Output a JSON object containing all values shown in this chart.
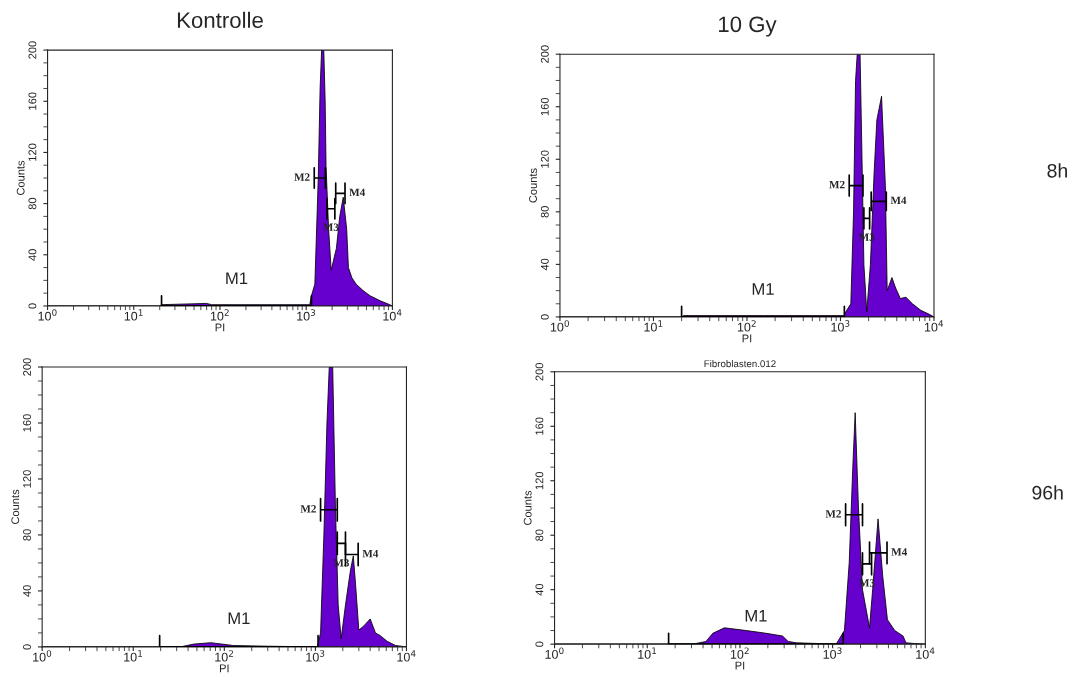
{
  "chart_data": [
    {
      "type": "area",
      "title": "Kontrolle",
      "xlabel": "PI",
      "ylabel": "Counts",
      "log": "x",
      "xlim": [
        1,
        10000
      ],
      "ylim": [
        0,
        200
      ],
      "xticks": [
        {
          "value": 1,
          "label": "10$^{0}$"
        },
        {
          "value": 10,
          "label": "10$^{1}$"
        },
        {
          "value": 100,
          "label": "10$^{2}$"
        },
        {
          "value": 1000,
          "label": "10$^{3}$"
        },
        {
          "value": 10000,
          "label": "10$^{4}$"
        }
      ],
      "yticks": [
        0,
        40,
        80,
        120,
        160,
        200
      ],
      "series": [
        {
          "color": "#6600cc",
          "x": [
            1,
            20,
            21,
            70,
            80,
            1100,
            1150,
            1260,
            1380,
            1450,
            1510,
            1600,
            1660,
            1700,
            1820,
            1950,
            2240,
            2450,
            2690,
            2950,
            3090,
            3390,
            3800,
            4570,
            5500,
            7240,
            9330,
            10000
          ],
          "values": [
            0,
            0,
            1,
            2,
            1,
            1,
            8,
            17,
            100,
            170,
            200,
            200,
            160,
            109,
            60,
            28,
            45,
            70,
            85,
            60,
            30,
            22,
            17,
            12,
            8,
            4,
            1,
            0
          ]
        },
        {
          "type": "line",
          "name": "M1",
          "color": "#000000",
          "x": [
            21,
            21,
            21,
            1150,
            1150,
            1150
          ],
          "values": [
            8,
            0,
            0,
            0,
            8,
            0
          ]
        },
        {
          "type": "line",
          "name": "M2",
          "color": "#000000",
          "x": [
            1240,
            1240,
            1240,
            1670,
            1670,
            1670
          ],
          "values": [
            108,
            92,
            100,
            100,
            108,
            92
          ]
        },
        {
          "type": "line",
          "name": "M3",
          "color": "#000000",
          "x": [
            1740,
            1740,
            1740,
            2150,
            2150,
            2150
          ],
          "values": [
            84,
            68,
            76,
            76,
            84,
            68
          ]
        },
        {
          "type": "line",
          "name": "M4",
          "color": "#000000",
          "x": [
            2200,
            2200,
            2200,
            2820,
            2820,
            2820
          ],
          "values": [
            96,
            80,
            88,
            88,
            96,
            80
          ]
        }
      ]
    },
    {
      "type": "area",
      "title": "10 Gy",
      "xlabel": "PI",
      "ylabel": "Counts",
      "log": "x",
      "xlim": [
        1,
        10000
      ],
      "ylim": [
        0,
        200
      ],
      "xticks": [
        {
          "value": 1,
          "label": "10$^{0}$"
        },
        {
          "value": 10,
          "label": "10$^{1}$"
        },
        {
          "value": 100,
          "label": "10$^{2}$"
        },
        {
          "value": 1000,
          "label": "10$^{3}$"
        },
        {
          "value": 10000,
          "label": "10$^{4}$"
        }
      ],
      "yticks": [
        0,
        40,
        80,
        120,
        160,
        200
      ],
      "series": [
        {
          "color": "#6600cc",
          "x": [
            1,
            20,
            21,
            150,
            1100,
            1120,
            1290,
            1380,
            1450,
            1510,
            1620,
            1700,
            1780,
            1910,
            2090,
            2290,
            2450,
            2750,
            3020,
            3160,
            3550,
            3890,
            4370,
            5010,
            5890,
            7240,
            8910,
            10000
          ],
          "values": [
            0,
            0,
            1,
            1,
            1,
            3,
            10,
            80,
            180,
            200,
            200,
            120,
            40,
            4,
            40,
            110,
            150,
            168,
            100,
            20,
            30,
            22,
            14,
            15,
            10,
            5,
            2,
            0
          ]
        },
        {
          "type": "line",
          "name": "M1",
          "color": "#000000",
          "x": [
            20,
            20,
            20,
            1100,
            1100,
            1100
          ],
          "values": [
            8,
            0,
            0,
            0,
            8,
            0
          ]
        },
        {
          "type": "line",
          "name": "M2",
          "color": "#000000",
          "x": [
            1240,
            1240,
            1240,
            1740,
            1740,
            1740
          ],
          "values": [
            108,
            92,
            100,
            100,
            108,
            92
          ]
        },
        {
          "type": "line",
          "name": "M3",
          "color": "#000000",
          "x": [
            1780,
            1780,
            1780,
            2050,
            2050,
            2050
          ],
          "values": [
            83,
            67,
            75,
            75,
            83,
            67
          ]
        },
        {
          "type": "line",
          "name": "M4",
          "color": "#000000",
          "x": [
            2130,
            2130,
            2130,
            3090,
            3090,
            3090
          ],
          "values": [
            95,
            81,
            88,
            88,
            95,
            81
          ]
        }
      ],
      "annotations": [
        "8h"
      ]
    },
    {
      "type": "area",
      "xlabel": "PI",
      "ylabel": "Counts",
      "log": "x",
      "xlim": [
        1,
        10000
      ],
      "ylim": [
        0,
        200
      ],
      "xticks": [
        {
          "value": 1,
          "label": "10$^{0}$"
        },
        {
          "value": 10,
          "label": "10$^{1}$"
        },
        {
          "value": 100,
          "label": "10$^{2}$"
        },
        {
          "value": 1000,
          "label": "10$^{3}$"
        },
        {
          "value": 10000,
          "label": "10$^{4}$"
        }
      ],
      "yticks": [
        0,
        40,
        80,
        120,
        160,
        200
      ],
      "series": [
        {
          "color": "#6600cc",
          "x": [
            1,
            33,
            46,
            71,
            126,
            295,
            1050,
            1140,
            1240,
            1340,
            1420,
            1550,
            1660,
            1780,
            1920,
            2140,
            2430,
            2610,
            2760,
            3000,
            3400,
            4000,
            4570,
            5170,
            6130,
            7590,
            10000
          ],
          "values": [
            0,
            0,
            2,
            3,
            1,
            0.5,
            0,
            10,
            80,
            160,
            200,
            200,
            100,
            30,
            6,
            30,
            55,
            65,
            45,
            12,
            15,
            20,
            10,
            8,
            4,
            1,
            0
          ]
        },
        {
          "type": "line",
          "name": "M1",
          "color": "#000000",
          "x": [
            19.5,
            19.5,
            19.5,
            1070,
            1070,
            1070
          ],
          "values": [
            8,
            0,
            0,
            0,
            8,
            0
          ]
        },
        {
          "type": "line",
          "name": "M2",
          "color": "#000000",
          "x": [
            1140,
            1140,
            1140,
            1740,
            1740,
            1740
          ],
          "values": [
            106,
            90,
            98,
            98,
            106,
            90
          ]
        },
        {
          "type": "line",
          "name": "M3",
          "color": "#000000",
          "x": [
            1740,
            1740,
            1740,
            2140,
            2140,
            2140
          ],
          "values": [
            82,
            66,
            74,
            74,
            82,
            66
          ]
        },
        {
          "type": "line",
          "name": "M4",
          "color": "#000000",
          "x": [
            2140,
            2140,
            2140,
            2950,
            2950,
            2950
          ],
          "values": [
            74,
            58,
            66,
            66,
            74,
            58
          ]
        }
      ]
    },
    {
      "type": "area",
      "subtitle": "Fibroblasten.012",
      "xlabel": "PI",
      "ylabel": "Counts",
      "log": "x",
      "xlim": [
        1,
        10000
      ],
      "ylim": [
        0,
        200
      ],
      "xticks": [
        {
          "value": 1,
          "label": "10$^{0}$"
        },
        {
          "value": 10,
          "label": "10$^{1}$"
        },
        {
          "value": 100,
          "label": "10$^{2}$"
        },
        {
          "value": 1000,
          "label": "10$^{3}$"
        },
        {
          "value": 10000,
          "label": "10$^{4}$"
        }
      ],
      "yticks": [
        0,
        40,
        80,
        120,
        160,
        200
      ],
      "series": [
        {
          "color": "#6600cc",
          "x": [
            1,
            31,
            43,
            51,
            68,
            117,
            191,
            288,
            331,
            405,
            1090,
            1340,
            1510,
            1650,
            1750,
            1900,
            2100,
            2500,
            2700,
            3090,
            3470,
            3900,
            4680,
            5750,
            6170,
            7590,
            10000
          ],
          "values": [
            0,
            0,
            2,
            8,
            12,
            10,
            8,
            6,
            2,
            1,
            0,
            10,
            60,
            130,
            170,
            100,
            40,
            12,
            40,
            92,
            50,
            18,
            10,
            6,
            1,
            0.5,
            0
          ]
        },
        {
          "type": "line",
          "name": "M1",
          "color": "#000000",
          "x": [
            17,
            17,
            17,
            1300,
            1300,
            1300
          ],
          "values": [
            8,
            0,
            0,
            0,
            8,
            0
          ]
        },
        {
          "type": "line",
          "name": "M2",
          "color": "#000000",
          "x": [
            1380,
            1380,
            1380,
            2100,
            2100,
            2100
          ],
          "values": [
            103,
            87,
            95,
            95,
            103,
            87
          ]
        },
        {
          "type": "line",
          "name": "M3",
          "color": "#000000",
          "x": [
            2100,
            2100,
            2100,
            2630,
            2630,
            2630
          ],
          "values": [
            67,
            51,
            59,
            59,
            67,
            51
          ]
        },
        {
          "type": "line",
          "name": "M4",
          "color": "#000000",
          "x": [
            2500,
            2500,
            2500,
            3860,
            3860,
            3860
          ],
          "values": [
            75,
            59,
            67,
            67,
            75,
            59
          ]
        }
      ],
      "annotations": [
        "96h"
      ]
    }
  ]
}
